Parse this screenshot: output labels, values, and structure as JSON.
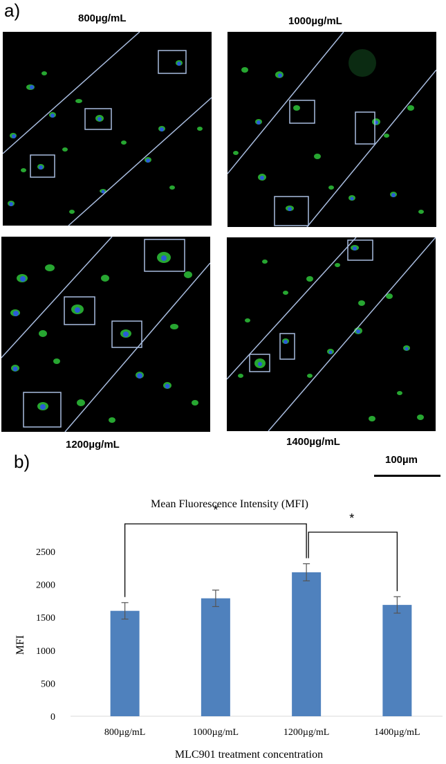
{
  "figure": {
    "panel_a_label": "a)",
    "panel_b_label": "b)",
    "scale_bar_label": "100µm",
    "micrographs": [
      {
        "label": "800µg/mL"
      },
      {
        "label": "1000µg/mL"
      },
      {
        "label": "1200µg/mL"
      },
      {
        "label": "1400µg/mL"
      }
    ],
    "colors": {
      "micrograph_background": "#000000",
      "cell_stain_green": "#2ec43a",
      "nucleus_blue": "#2a5bd7",
      "overlay_line": "#a9bde0",
      "bar_fill": "#4f81bd"
    }
  },
  "chart_data": {
    "type": "bar",
    "title": "Mean Fluorescence Intensity (MFI)",
    "xlabel": "MLC901 treatment concentration",
    "ylabel": "MFI",
    "categories": [
      "800µg/mL",
      "1000µg/mL",
      "1200µg/mL",
      "1400µg/mL"
    ],
    "values": [
      1600,
      1790,
      2185,
      1690
    ],
    "errors": [
      125,
      125,
      130,
      125
    ],
    "ylim": [
      0,
      2500
    ],
    "yticks": [
      0,
      500,
      1000,
      1500,
      2000,
      2500
    ],
    "grid": false,
    "legend": "none",
    "significance": [
      {
        "from": "800µg/mL",
        "to": "1200µg/mL",
        "label": "*"
      },
      {
        "from": "1200µg/mL",
        "to": "1400µg/mL",
        "label": "*"
      }
    ]
  }
}
